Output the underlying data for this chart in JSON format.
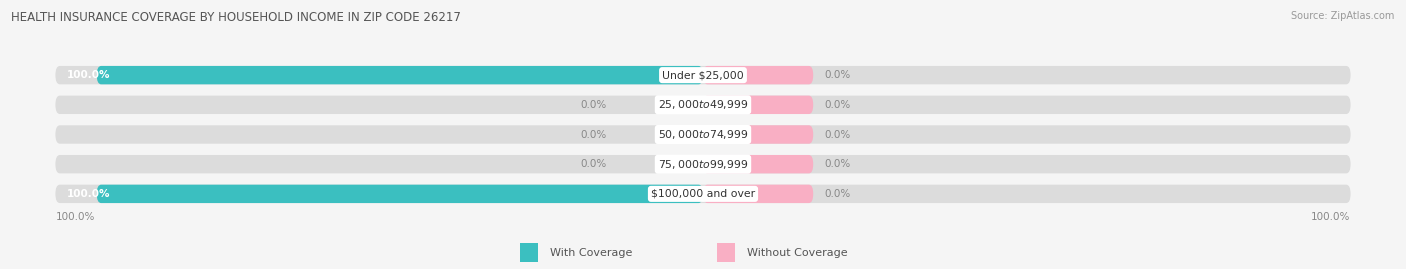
{
  "title": "HEALTH INSURANCE COVERAGE BY HOUSEHOLD INCOME IN ZIP CODE 26217",
  "source": "Source: ZipAtlas.com",
  "categories": [
    "Under $25,000",
    "$25,000 to $49,999",
    "$50,000 to $74,999",
    "$75,000 to $99,999",
    "$100,000 and over"
  ],
  "with_coverage": [
    100.0,
    0.0,
    0.0,
    0.0,
    100.0
  ],
  "without_coverage": [
    0.0,
    0.0,
    0.0,
    0.0,
    0.0
  ],
  "color_with": "#3bbfc0",
  "color_without": "#f9afc4",
  "bar_bg": "#dcdcdc",
  "fig_bg": "#f5f5f5",
  "bar_height": 0.62,
  "label_fontsize": 7.8,
  "title_fontsize": 8.5,
  "source_fontsize": 7.0,
  "legend_fontsize": 8.0,
  "pct_fontsize": 7.5
}
